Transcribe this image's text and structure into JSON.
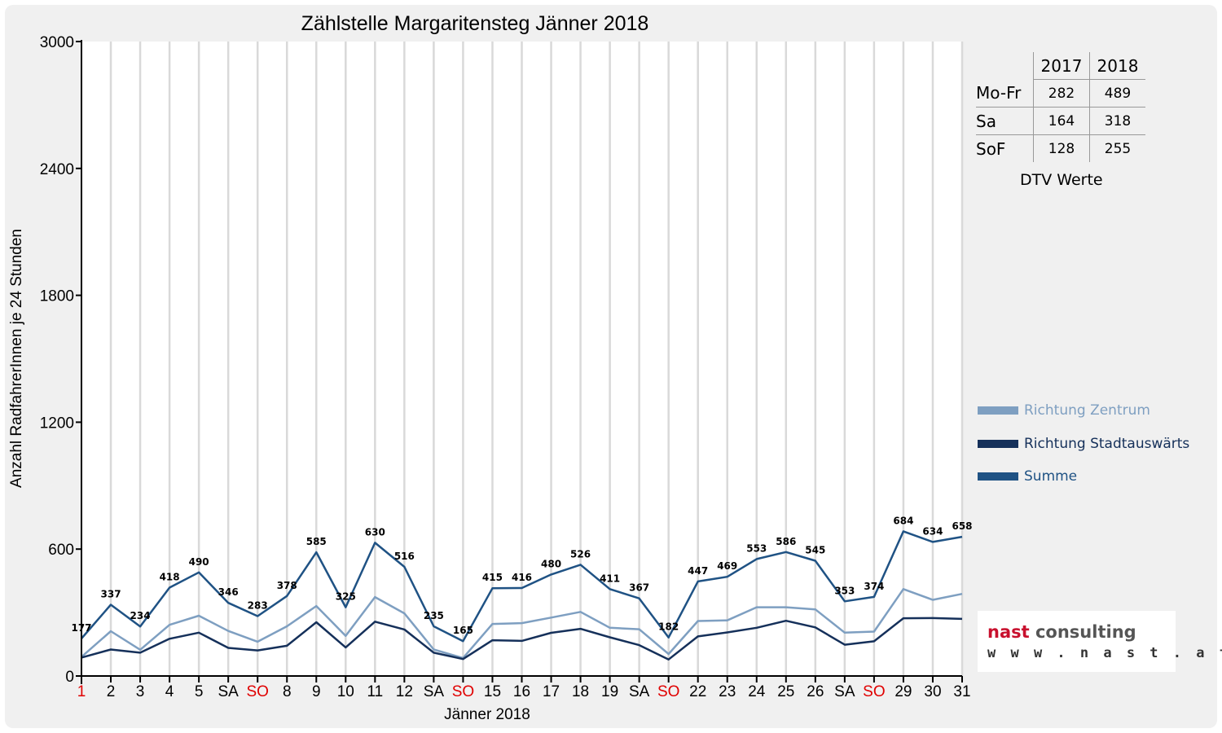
{
  "chart_data": {
    "type": "line",
    "title": "Zählstelle Margaritensteg Jänner 2018",
    "xlabel": "Jänner 2018",
    "ylabel": "Anzahl RadfahrerInnen je 24 Stunden",
    "ylim": [
      0,
      3000
    ],
    "yticks": [
      0,
      600,
      1200,
      1800,
      2400,
      3000
    ],
    "grid": "vertical",
    "legend_position": "right",
    "categories": [
      "1",
      "2",
      "3",
      "4",
      "5",
      "SA",
      "SO",
      "8",
      "9",
      "10",
      "11",
      "12",
      "SA",
      "SO",
      "15",
      "16",
      "17",
      "18",
      "19",
      "SA",
      "SO",
      "22",
      "23",
      "24",
      "25",
      "26",
      "SA",
      "SO",
      "29",
      "30",
      "31"
    ],
    "red_categories": [
      0,
      6,
      13,
      20,
      27
    ],
    "series": [
      {
        "name": "Richtung Zentrum",
        "color": "#7e9fc1",
        "values": [
          90,
          212,
          124,
          242,
          285,
          213,
          162,
          235,
          331,
          190,
          373,
          296,
          125,
          85,
          246,
          250,
          276,
          303,
          228,
          221,
          104,
          260,
          263,
          325,
          325,
          315,
          205,
          210,
          411,
          360,
          388
        ]
      },
      {
        "name": "Richtung Stadtauswärts",
        "color": "#15305a",
        "values": [
          87,
          125,
          110,
          176,
          205,
          133,
          121,
          143,
          254,
          135,
          257,
          220,
          110,
          80,
          169,
          166,
          204,
          223,
          183,
          146,
          78,
          187,
          206,
          228,
          261,
          230,
          148,
          164,
          273,
          274,
          270
        ]
      },
      {
        "name": "Summe",
        "color": "#1f5284",
        "values": [
          177,
          337,
          234,
          418,
          490,
          346,
          283,
          378,
          585,
          325,
          630,
          516,
          235,
          165,
          415,
          416,
          480,
          526,
          411,
          367,
          182,
          447,
          469,
          553,
          586,
          545,
          353,
          374,
          684,
          634,
          658
        ]
      }
    ],
    "data_labels": [
      177,
      337,
      234,
      418,
      490,
      346,
      283,
      378,
      585,
      325,
      630,
      516,
      235,
      165,
      415,
      416,
      480,
      526,
      411,
      367,
      182,
      447,
      469,
      553,
      586,
      545,
      353,
      374,
      684,
      634,
      658
    ]
  },
  "dtv_table": {
    "headers": [
      "2017",
      "2018"
    ],
    "rows": [
      {
        "label": "Mo-Fr",
        "v2017": "282",
        "v2018": "489"
      },
      {
        "label": "Sa",
        "v2017": "164",
        "v2018": "318"
      },
      {
        "label": "SoF",
        "v2017": "128",
        "v2018": "255"
      }
    ],
    "caption": "DTV Werte"
  },
  "logo": {
    "word1": "nast",
    "word2": "consulting",
    "url": "w w w . n a s t . a t"
  }
}
